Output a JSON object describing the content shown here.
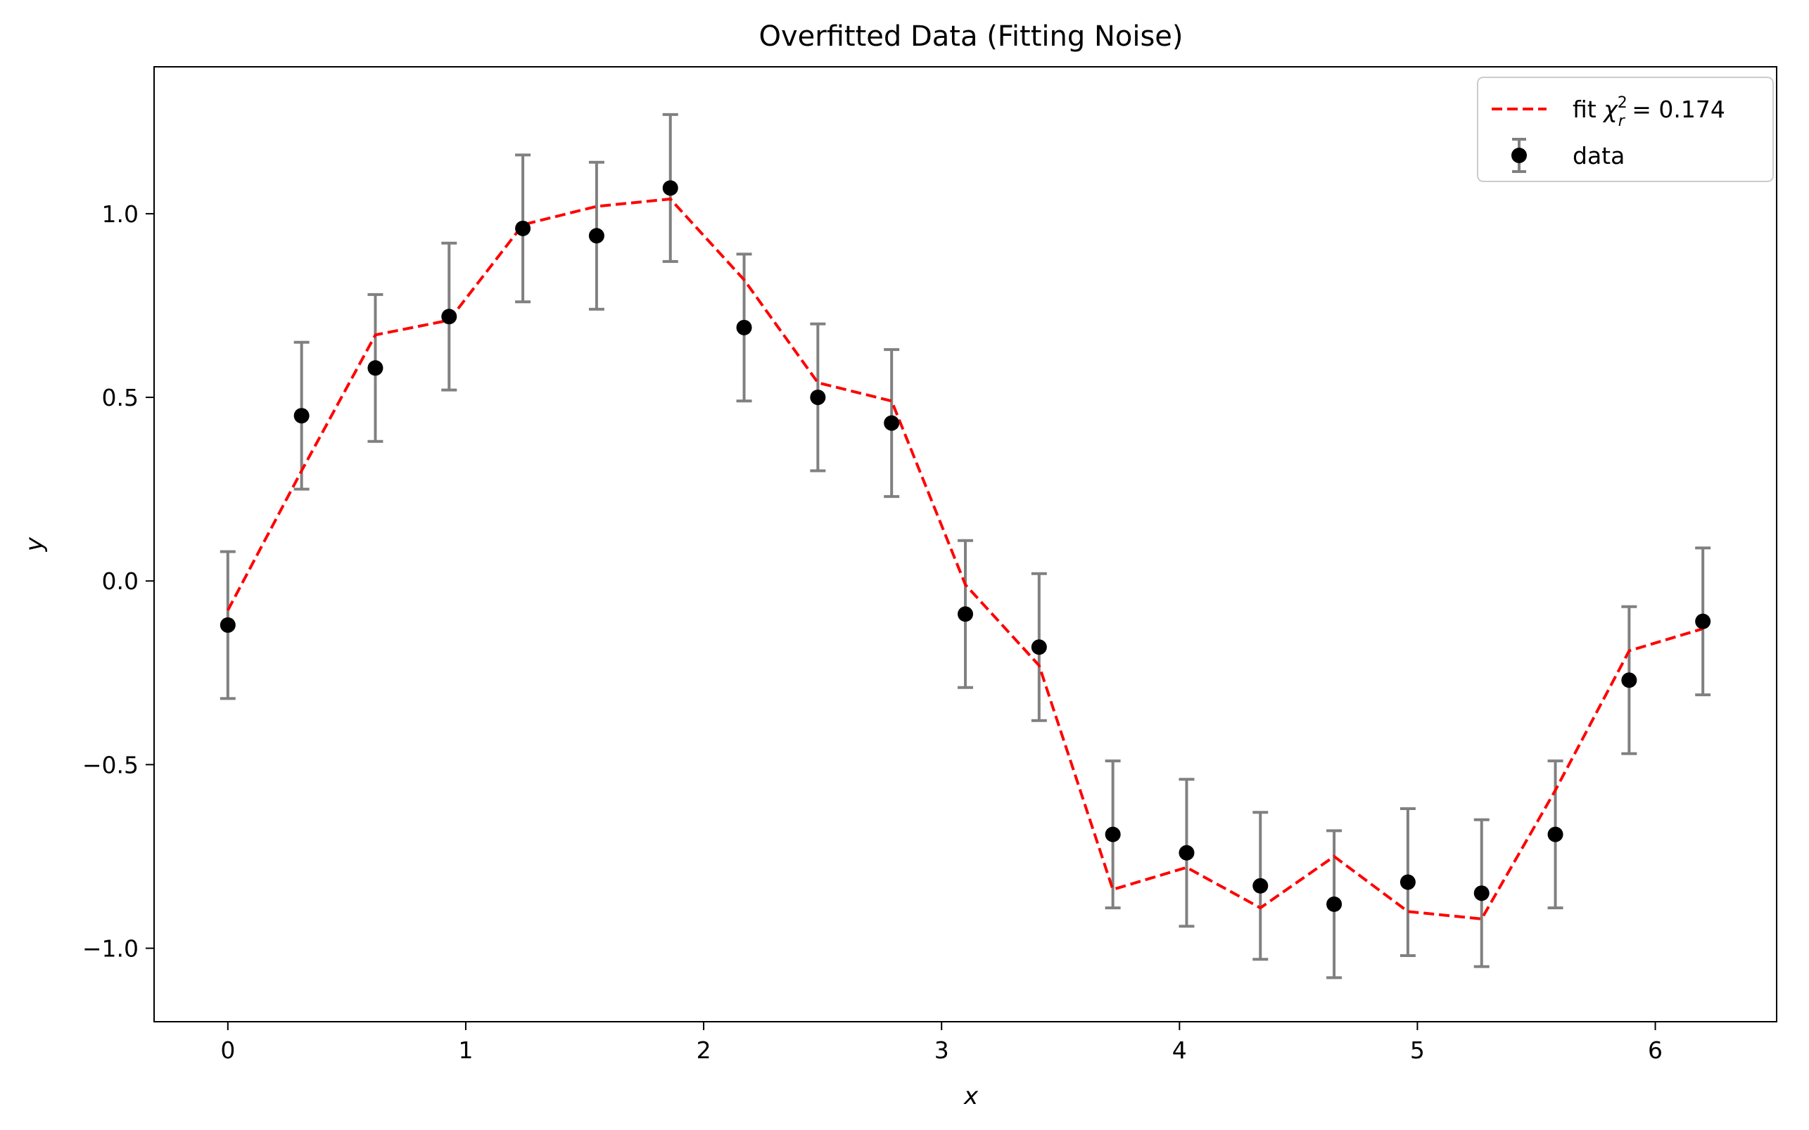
{
  "chart_data": {
    "type": "scatter",
    "title": "Overfitted Data (Fitting Noise)",
    "xlabel": "x",
    "ylabel": "y",
    "xlim": [
      -0.31,
      6.51
    ],
    "ylim": [
      -1.2,
      1.4
    ],
    "xticks": [
      0,
      1,
      2,
      3,
      4,
      5,
      6
    ],
    "xtick_labels": [
      "0",
      "1",
      "2",
      "3",
      "4",
      "5",
      "6"
    ],
    "yticks": [
      -1.0,
      -0.5,
      0.0,
      0.5,
      1.0
    ],
    "ytick_labels": [
      "−1.0",
      "−0.5",
      "0.0",
      "0.5",
      "1.0"
    ],
    "grid": false,
    "legend_position": "top-right",
    "series": [
      {
        "name": "data",
        "kind": "errorbar-scatter",
        "marker_color": "#000000",
        "errorbar_color": "#808080",
        "x": [
          0.0,
          0.31,
          0.62,
          0.93,
          1.24,
          1.55,
          1.86,
          2.17,
          2.48,
          2.79,
          3.1,
          3.41,
          3.72,
          4.03,
          4.34,
          4.65,
          4.96,
          5.27,
          5.58,
          5.89,
          6.2
        ],
        "y": [
          -0.12,
          0.45,
          0.58,
          0.72,
          0.96,
          0.94,
          1.07,
          0.69,
          0.5,
          0.43,
          -0.09,
          -0.18,
          -0.69,
          -0.74,
          -0.83,
          -0.88,
          -0.82,
          -0.85,
          -0.69,
          -0.27,
          -0.11
        ],
        "yerr": 0.2
      },
      {
        "name": "fit",
        "legend_label_prefix": "fit ",
        "legend_label_math": "χ",
        "legend_label_sup": "2",
        "legend_label_sub": "r",
        "legend_label_suffix": " = 0.174",
        "kind": "line",
        "line_style": "dashed",
        "color": "#ff0000",
        "x": [
          0.0,
          0.31,
          0.62,
          0.93,
          1.24,
          1.55,
          1.86,
          2.17,
          2.48,
          2.79,
          3.1,
          3.41,
          3.72,
          4.03,
          4.34,
          4.65,
          4.96,
          5.27,
          5.58,
          5.89,
          6.2
        ],
        "y": [
          -0.08,
          0.3,
          0.67,
          0.71,
          0.97,
          1.02,
          1.04,
          0.82,
          0.54,
          0.49,
          -0.01,
          -0.23,
          -0.84,
          -0.78,
          -0.89,
          -0.75,
          -0.9,
          -0.92,
          -0.57,
          -0.19,
          -0.13
        ]
      }
    ]
  }
}
